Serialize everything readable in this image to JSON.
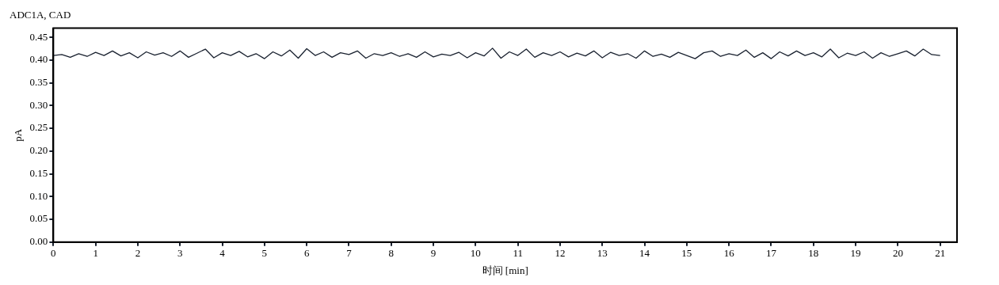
{
  "chart_data": {
    "type": "line",
    "title": "ADC1A, CAD",
    "xlabel": "时间 [min]",
    "ylabel": "pA",
    "xlim": [
      0,
      21.4
    ],
    "xticks": [
      0,
      1,
      2,
      3,
      4,
      5,
      6,
      7,
      8,
      9,
      10,
      11,
      12,
      13,
      14,
      15,
      16,
      17,
      18,
      19,
      20,
      21
    ],
    "ylim": [
      0,
      0.47
    ],
    "yticks": [
      {
        "value": 0,
        "label": "0.00"
      },
      {
        "value": 0.05,
        "label": "0.05"
      },
      {
        "value": 0.1,
        "label": "0.10"
      },
      {
        "value": 0.15,
        "label": "0.15"
      },
      {
        "value": 0.2,
        "label": "0.20"
      },
      {
        "value": 0.25,
        "label": "0.25"
      },
      {
        "value": 0.3,
        "label": "0.30"
      },
      {
        "value": 0.35,
        "label": "0.35"
      },
      {
        "value": 0.4,
        "label": "0.40"
      },
      {
        "value": 0.45,
        "label": "0.45"
      }
    ],
    "grid": false,
    "legend": false,
    "marker": "none",
    "line_style": "solid",
    "x": [
      0,
      0.2,
      0.4,
      0.6,
      0.8,
      1,
      1.2,
      1.4,
      1.6,
      1.8,
      2,
      2.2,
      2.4,
      2.6,
      2.8,
      3,
      3.2,
      3.4,
      3.6,
      3.8,
      4,
      4.2,
      4.4,
      4.6,
      4.8,
      5,
      5.2,
      5.4,
      5.6,
      5.8,
      6,
      6.2,
      6.4,
      6.6,
      6.8,
      7,
      7.2,
      7.4,
      7.6,
      7.8,
      8,
      8.2,
      8.4,
      8.6,
      8.8,
      9,
      9.2,
      9.4,
      9.6,
      9.8,
      10,
      10.2,
      10.4,
      10.6,
      10.8,
      11,
      11.2,
      11.4,
      11.6,
      11.8,
      12,
      12.2,
      12.4,
      12.6,
      12.8,
      13,
      13.2,
      13.4,
      13.6,
      13.8,
      14,
      14.2,
      14.4,
      14.6,
      14.8,
      15,
      15.2,
      15.4,
      15.6,
      15.8,
      16,
      16.2,
      16.4,
      16.6,
      16.8,
      17,
      17.2,
      17.4,
      17.6,
      17.8,
      18,
      18.2,
      18.4,
      18.6,
      18.8,
      19,
      19.2,
      19.4,
      19.6,
      19.8,
      20,
      20.2,
      20.4,
      20.6,
      20.8,
      21
    ],
    "series": [
      {
        "color": "#1a2230",
        "values": [
          0.41,
          0.412,
          0.406,
          0.414,
          0.408,
          0.417,
          0.41,
          0.42,
          0.409,
          0.416,
          0.405,
          0.418,
          0.411,
          0.416,
          0.408,
          0.42,
          0.406,
          0.415,
          0.424,
          0.405,
          0.416,
          0.41,
          0.419,
          0.407,
          0.414,
          0.403,
          0.418,
          0.409,
          0.422,
          0.404,
          0.425,
          0.41,
          0.418,
          0.406,
          0.416,
          0.412,
          0.42,
          0.404,
          0.414,
          0.41,
          0.416,
          0.408,
          0.414,
          0.406,
          0.418,
          0.407,
          0.413,
          0.41,
          0.417,
          0.405,
          0.416,
          0.409,
          0.426,
          0.404,
          0.418,
          0.41,
          0.424,
          0.406,
          0.416,
          0.41,
          0.418,
          0.407,
          0.415,
          0.409,
          0.42,
          0.405,
          0.417,
          0.41,
          0.414,
          0.404,
          0.42,
          0.408,
          0.413,
          0.406,
          0.417,
          0.41,
          0.403,
          0.416,
          0.42,
          0.408,
          0.414,
          0.41,
          0.422,
          0.406,
          0.416,
          0.403,
          0.418,
          0.409,
          0.42,
          0.41,
          0.416,
          0.407,
          0.424,
          0.405,
          0.415,
          0.41,
          0.418,
          0.404,
          0.416,
          0.408,
          0.414,
          0.42,
          0.409,
          0.424,
          0.412,
          0.41
        ]
      }
    ]
  }
}
